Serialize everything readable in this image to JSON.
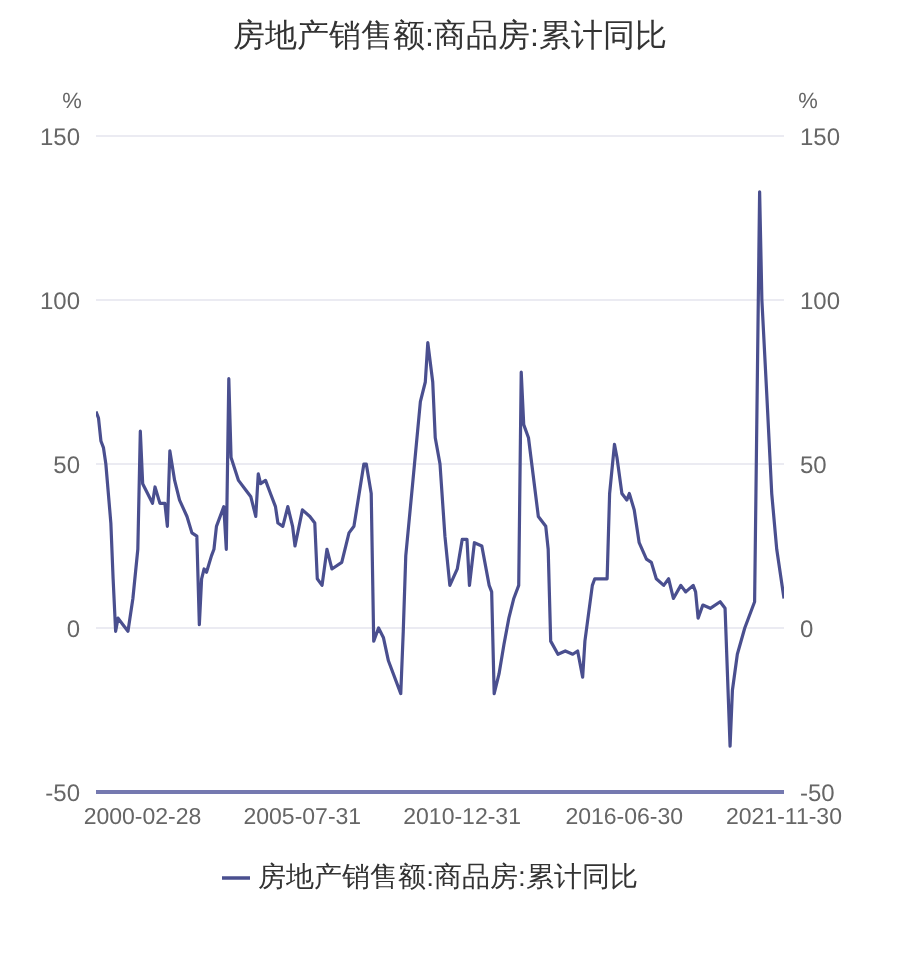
{
  "chart_data": {
    "type": "line",
    "title": "房地产销售额:商品房:累计同比",
    "ylabel": "%",
    "y2label": "%",
    "x": [
      "1998-08",
      "1998-09",
      "1998-10",
      "1998-11",
      "1998-12",
      "1999-02",
      "1999-03",
      "1999-04",
      "1999-05",
      "1999-07",
      "1999-09",
      "1999-11",
      "2000-01",
      "2000-02",
      "2000-03",
      "2000-05",
      "2000-07",
      "2000-08",
      "2000-10",
      "2000-12",
      "2001-01",
      "2001-02",
      "2001-04",
      "2001-05",
      "2001-06",
      "2001-09",
      "2001-11",
      "2002-01",
      "2002-02",
      "2002-03",
      "2002-04",
      "2002-05",
      "2002-07",
      "2002-08",
      "2002-09",
      "2002-12",
      "2003-01",
      "2003-02",
      "2003-03",
      "2003-06",
      "2003-09",
      "2003-11",
      "2004-01",
      "2004-02",
      "2004-03",
      "2004-05",
      "2004-07",
      "2004-09",
      "2004-10",
      "2004-12",
      "2005-02",
      "2005-04",
      "2005-05",
      "2005-08",
      "2005-11",
      "2006-01",
      "2006-02",
      "2006-04",
      "2006-06",
      "2006-08",
      "2006-12",
      "2007-03",
      "2007-05",
      "2007-09",
      "2007-10",
      "2007-12",
      "2008-01",
      "2008-03",
      "2008-05",
      "2008-07",
      "2008-12",
      "2009-01",
      "2009-02",
      "2009-05",
      "2009-08",
      "2009-10",
      "2009-11",
      "2010-01",
      "2010-02",
      "2010-04",
      "2010-06",
      "2010-08",
      "2010-11",
      "2011-01",
      "2011-03",
      "2011-04",
      "2011-06",
      "2011-09",
      "2011-12",
      "2012-01",
      "2012-02",
      "2012-04",
      "2012-06",
      "2012-08",
      "2012-10",
      "2012-12",
      "2013-01",
      "2013-02",
      "2013-04",
      "2013-08",
      "2013-11",
      "2013-12",
      "2014-01",
      "2014-04",
      "2014-07",
      "2014-10",
      "2014-12",
      "2015-02",
      "2015-03",
      "2015-06",
      "2015-07",
      "2015-10",
      "2015-12",
      "2016-01",
      "2016-03",
      "2016-04",
      "2016-06",
      "2016-08",
      "2016-09",
      "2016-11",
      "2017-01",
      "2017-04",
      "2017-06",
      "2017-08",
      "2017-11",
      "2018-01",
      "2018-03",
      "2018-06",
      "2018-08",
      "2018-11",
      "2018-12",
      "2019-01",
      "2019-03",
      "2019-06",
      "2019-10",
      "2019-12",
      "2020-02",
      "2020-03",
      "2020-05",
      "2020-08",
      "2020-12",
      "2021-02",
      "2021-03",
      "2021-05",
      "2021-07",
      "2021-09",
      "2021-11-30"
    ],
    "series": [
      {
        "name": "房地产销售额:商品房:累计同比",
        "color": "#4a4f8f",
        "values": [
          66,
          64,
          57,
          55,
          50,
          32,
          15,
          -1,
          3,
          1,
          -1,
          9,
          24,
          60,
          44,
          41,
          38,
          43,
          38,
          38,
          31,
          54,
          45,
          42,
          39,
          34,
          29,
          28,
          1,
          15,
          18,
          17,
          22,
          24,
          31,
          37,
          24,
          76,
          52,
          45,
          42,
          40,
          34,
          47,
          44,
          45,
          41,
          37,
          32,
          31,
          37,
          31,
          25,
          36,
          34,
          32,
          15,
          13,
          24,
          18,
          20,
          29,
          31,
          50,
          50,
          41,
          -4,
          0,
          -3,
          -10,
          -20,
          -1,
          22,
          45,
          69,
          75,
          87,
          75,
          58,
          50,
          28,
          13,
          18,
          27,
          27,
          13,
          26,
          25,
          13,
          11,
          -20,
          -14,
          -5,
          3,
          9,
          13,
          78,
          62,
          58,
          34,
          31,
          24,
          -4,
          -8,
          -7,
          -8,
          -7,
          -15,
          -4,
          13,
          15,
          15,
          15,
          41,
          56,
          52,
          41,
          39,
          41,
          36,
          26,
          21,
          20,
          15,
          13,
          15,
          9,
          13,
          11,
          13,
          11,
          3,
          7,
          6,
          8,
          6,
          -36,
          -19,
          -8,
          0,
          8,
          133,
          100,
          71,
          41,
          24,
          9
        ]
      }
    ],
    "xlim": [
      "1998-08",
      "2021-11-30"
    ],
    "xticks": [
      "2000-02-28",
      "2005-07-31",
      "2010-12-31",
      "2016-06-30",
      "2021-11-30"
    ],
    "ylim": [
      -50,
      150
    ],
    "yticks": [
      -50,
      0,
      50,
      100,
      150
    ],
    "y2lim": [
      -50,
      150
    ],
    "y2ticks": [
      -50,
      0,
      50,
      100,
      150
    ],
    "grid": "y",
    "legend": "bottom",
    "marker": "none",
    "line_style": "solid"
  }
}
